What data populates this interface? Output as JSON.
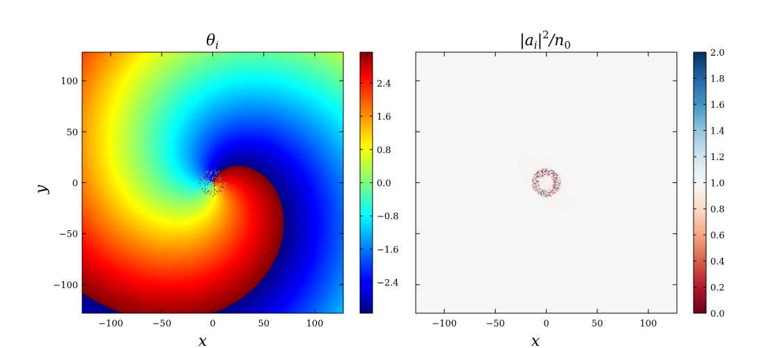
{
  "chart_data": [
    {
      "type": "heatmap",
      "title": "θ_i",
      "title_main": "θ",
      "title_sub": "i",
      "xlabel": "x",
      "ylabel": "y",
      "xlim": [
        -128,
        128
      ],
      "ylim": [
        -128,
        128
      ],
      "xticks": [
        -100,
        -50,
        0,
        50,
        100
      ],
      "yticks": [
        -100,
        -50,
        0,
        50,
        100
      ],
      "xtick_labels": [
        "−100",
        "−50",
        "0",
        "50",
        "100"
      ],
      "ytick_labels": [
        "−100",
        "−50",
        "0",
        "50",
        "100"
      ],
      "colormap": "jet",
      "clim": [
        -3.14159,
        3.14159
      ],
      "colorbar_ticks": [
        -2.4,
        -1.6,
        -0.8,
        0.0,
        0.8,
        1.6,
        2.4
      ],
      "colorbar_labels": [
        "−2.4",
        "−1.6",
        "−0.8",
        "0.0",
        "0.8",
        "1.6",
        "2.4"
      ],
      "field": "spiral phase of a single vortex at origin, branch cut toward lower-left",
      "vortex_center": [
        0,
        0
      ]
    },
    {
      "type": "heatmap",
      "title": "|a_i|^2/n_0",
      "title_parts": [
        "|a",
        "i",
        "|",
        "2",
        "/n",
        "0"
      ],
      "xlabel": "x",
      "ylabel": "",
      "xlim": [
        -128,
        128
      ],
      "ylim": [
        -128,
        128
      ],
      "xticks": [
        -100,
        -50,
        0,
        50,
        100
      ],
      "yticks": [
        -100,
        -50,
        0,
        50,
        100
      ],
      "xtick_labels": [
        "−100",
        "−50",
        "0",
        "50",
        "100"
      ],
      "colormap": "RdBu",
      "clim": [
        0.0,
        2.0
      ],
      "colorbar_ticks": [
        0.0,
        0.2,
        0.4,
        0.6,
        0.8,
        1.0,
        1.2,
        1.4,
        1.6,
        1.8,
        2.0
      ],
      "colorbar_labels": [
        "0.0",
        "0.2",
        "0.4",
        "0.6",
        "0.8",
        "1.0",
        "1.2",
        "1.4",
        "1.6",
        "1.8",
        "2.0"
      ],
      "field": "density ≈ 1.0 everywhere with a small ring of fluctuations at the vortex core",
      "background_value": 1.0,
      "core_radius": 12
    }
  ]
}
